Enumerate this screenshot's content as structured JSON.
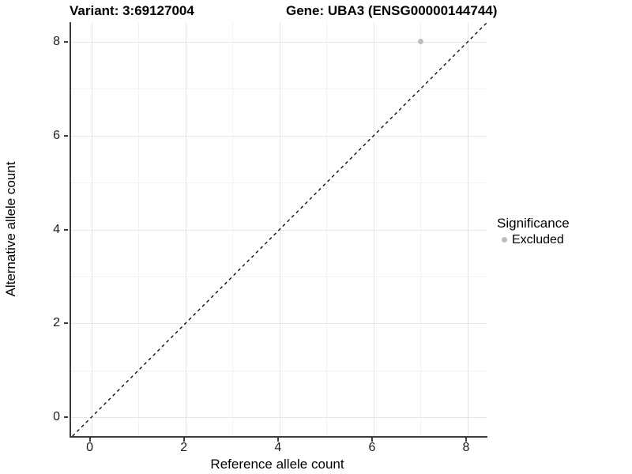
{
  "titles": {
    "variant": "Variant: 3:69127004",
    "gene": "Gene: UBA3 (ENSG00000144744)"
  },
  "chart_data": {
    "type": "scatter",
    "title_left": "Variant: 3:69127004",
    "title_right": "Gene: UBA3 (ENSG00000144744)",
    "xlabel": "Reference allele count",
    "ylabel": "Alternative allele count",
    "xlim": [
      -0.43,
      8.42
    ],
    "ylim": [
      -0.4,
      8.42
    ],
    "x_ticks": [
      0,
      2,
      4,
      6,
      8
    ],
    "y_ticks": [
      0,
      2,
      4,
      6,
      8
    ],
    "x_minor_ticks": [
      1,
      3,
      5,
      7
    ],
    "y_minor_ticks": [
      1,
      3,
      5,
      7
    ],
    "grid": true,
    "series": [
      {
        "name": "Excluded",
        "color": "#bdbdbd",
        "points": [
          {
            "x": 7,
            "y": 8
          }
        ]
      }
    ],
    "reference_line": {
      "kind": "identity",
      "equation": "y = x",
      "style": "dashed",
      "color": "#000000"
    },
    "legend": {
      "title": "Significance",
      "position": "right",
      "items": [
        {
          "label": "Excluded",
          "color": "#bdbdbd"
        }
      ]
    }
  },
  "colors": {
    "background": "#ffffff",
    "grid_major": "#e6e6e6",
    "grid_minor": "#f2f2f2",
    "axis_line": "#3c3c3c",
    "point": "#bdbdbd",
    "text": "#000000"
  }
}
